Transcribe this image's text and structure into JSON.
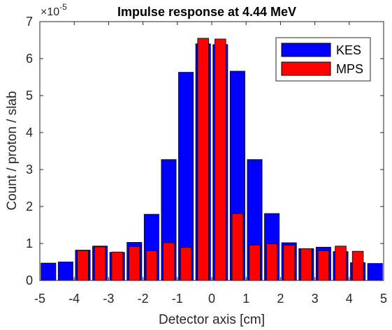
{
  "chart_data": {
    "type": "bar",
    "title": "Impulse response at 4.44 MeV",
    "xlabel": "Detector axis [cm]",
    "ylabel": "Count / proton / slab",
    "y_exponent_base": "×10",
    "y_exponent_power": "-5",
    "xlim": [
      -5,
      5
    ],
    "ylim": [
      0,
      7
    ],
    "x_ticks": [
      -5,
      -4,
      -3,
      -2,
      -1,
      0,
      1,
      2,
      3,
      4,
      5
    ],
    "y_ticks": [
      0,
      1,
      2,
      3,
      4,
      5,
      6,
      7
    ],
    "grid": false,
    "legend_position": "top-right",
    "bin_width": 0.5,
    "x": [
      -4.75,
      -4.25,
      -3.75,
      -3.25,
      -2.75,
      -2.25,
      -1.75,
      -1.25,
      -0.75,
      -0.25,
      0.25,
      0.75,
      1.25,
      1.75,
      2.25,
      2.75,
      3.25,
      3.75,
      4.25,
      4.75
    ],
    "series": [
      {
        "name": "KES",
        "color": "#0000ff",
        "values": [
          0.47,
          0.5,
          0.82,
          0.93,
          0.76,
          1.03,
          1.79,
          3.27,
          5.63,
          6.4,
          6.38,
          5.66,
          3.27,
          1.81,
          1.02,
          0.86,
          0.9,
          0.78,
          0.48,
          0.46
        ]
      },
      {
        "name": "MPS",
        "color": "#ff0000",
        "values": [
          0.0,
          0.0,
          0.81,
          0.91,
          0.77,
          0.92,
          0.8,
          1.02,
          0.9,
          6.55,
          6.53,
          1.81,
          0.96,
          0.99,
          0.95,
          0.86,
          0.8,
          0.93,
          0.79,
          0.0
        ]
      }
    ]
  }
}
